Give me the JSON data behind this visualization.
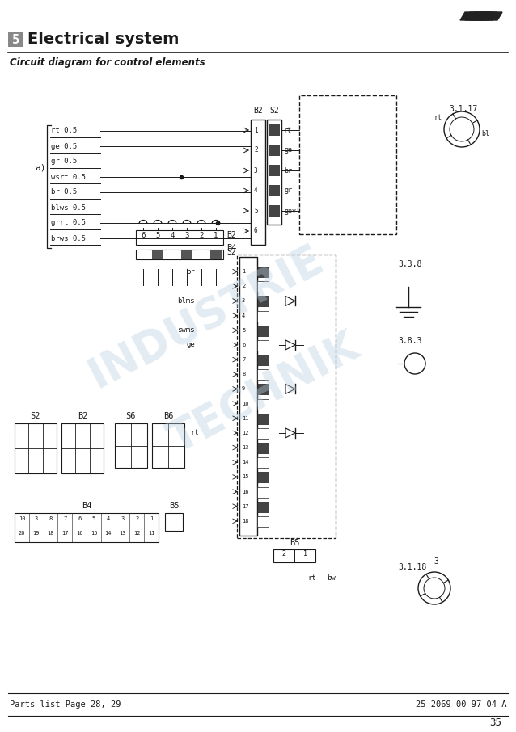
{
  "title": "Electrical system",
  "section_num": "5",
  "subtitle": "Circuit diagram for control elements",
  "footer_left": "Parts list Page 28, 29",
  "footer_right": "25 2069 00 97 04 A",
  "page_num": "35",
  "bg_color": "#ffffff",
  "text_color": "#000000",
  "wire_labels_a": [
    "rt 0.5",
    "ge 0.5",
    "gr 0.5",
    "wsrt 0.5",
    "br 0.5",
    "blws 0.5",
    "grrt 0.5",
    "brws 0.5"
  ],
  "b2_s2_labels": [
    "rt",
    "ge",
    "br",
    "gr",
    "gevl"
  ],
  "watermark_color": "#b8cfe0",
  "logo_color": "#222222"
}
